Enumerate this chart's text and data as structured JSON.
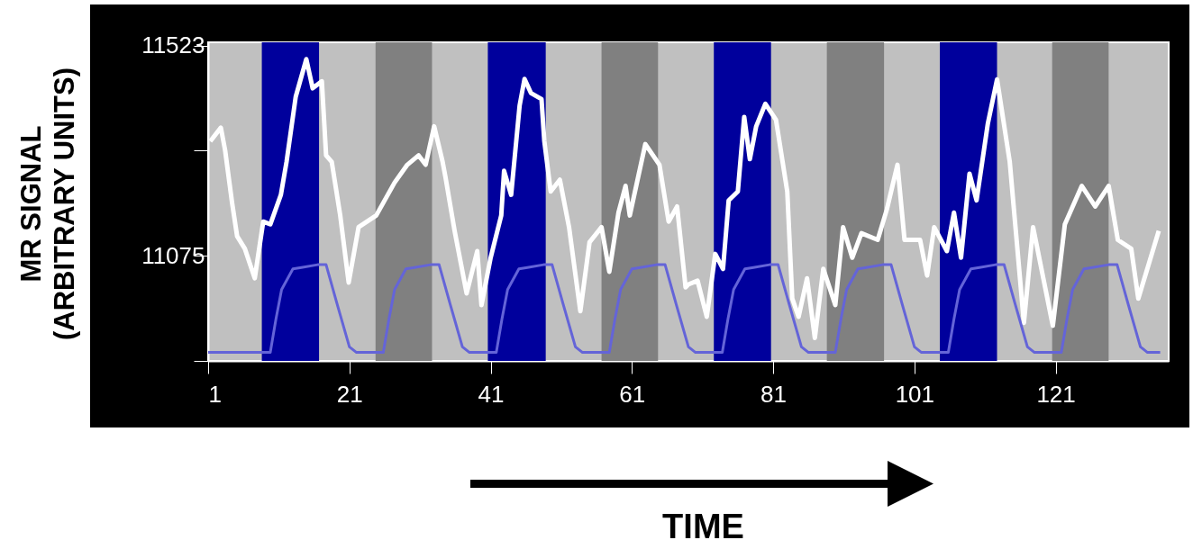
{
  "chart_data": {
    "type": "line",
    "xlabel": "TIME",
    "ylabel": "MR SIGNAL\n(ARBITRARY UNITS)",
    "xlim": [
      1,
      137
    ],
    "xticks": [
      1,
      21,
      41,
      61,
      81,
      101,
      121
    ],
    "ylim": [
      10851,
      11530
    ],
    "yticks": [
      11523,
      {
        "value": 11299,
        "label": null
      },
      11075,
      {
        "value": 10851,
        "label": null
      }
    ],
    "bands": [
      {
        "axis": "x",
        "from": 8.6,
        "to": 16.7,
        "color": "#00009c"
      },
      {
        "axis": "x",
        "from": 24.7,
        "to": 32.7,
        "color": "#808080"
      },
      {
        "axis": "x",
        "from": 40.6,
        "to": 48.8,
        "color": "#00009c"
      },
      {
        "axis": "x",
        "from": 56.7,
        "to": 64.7,
        "color": "#808080"
      },
      {
        "axis": "x",
        "from": 72.6,
        "to": 80.7,
        "color": "#00009c"
      },
      {
        "axis": "x",
        "from": 88.6,
        "to": 96.7,
        "color": "#808080"
      },
      {
        "axis": "x",
        "from": 104.6,
        "to": 112.7,
        "color": "#00009c"
      },
      {
        "axis": "x",
        "from": 120.5,
        "to": 128.5,
        "color": "#808080"
      }
    ],
    "series": [
      {
        "color": "#ffffff",
        "x": [
          1.3,
          2.8,
          3.4,
          4.4,
          5.1,
          6.2,
          7.6,
          8.8,
          9.8,
          11.3,
          12.1,
          13.4,
          14.9,
          15.8,
          17.1,
          17.7,
          18.5,
          19.7,
          20.9,
          22.3,
          24.8,
          27.4,
          29.2,
          30.8,
          31.8,
          33.0,
          34.2,
          34.6,
          35.9,
          37.6,
          39.1,
          39.7,
          41.0,
          42.5,
          42.9,
          43.9,
          45.1,
          45.8,
          46.7,
          48.2,
          48.6,
          49.5,
          50.8,
          52.1,
          53.7,
          55.0,
          56.7,
          57.8,
          59.1,
          60.1,
          60.7,
          62.9,
          64.9,
          66.2,
          67.4,
          68.6,
          69.0,
          70.3,
          71.6,
          72.8,
          73.9,
          74.7,
          76.0,
          76.9,
          77.7,
          78.6,
          79.9,
          81.4,
          83.0,
          83.7,
          84.6,
          85.8,
          86.9,
          88.1,
          89.8,
          90.9,
          92.2,
          93.5,
          95.8,
          97.1,
          98.6,
          99.6,
          101.8,
          102.8,
          103.8,
          105.6,
          106.6,
          107.6,
          108.8,
          109.8,
          111.4,
          112.7,
          114.5,
          116.5,
          117.8,
          120.6,
          122.3,
          124.7,
          126.6,
          128.5,
          129.8,
          131.7,
          132.7,
          135.6
        ],
        "values": [
          11319,
          11348,
          11300,
          11187,
          11117,
          11090,
          11027,
          11148,
          11142,
          11205,
          11275,
          11414,
          11494,
          11432,
          11447,
          11289,
          11275,
          11161,
          11018,
          11136,
          11161,
          11231,
          11269,
          11289,
          11269,
          11351,
          11275,
          11243,
          11128,
          10995,
          11085,
          10970,
          11071,
          11161,
          11256,
          11205,
          11395,
          11452,
          11422,
          11409,
          11319,
          11212,
          11237,
          11136,
          10957,
          11104,
          11136,
          11041,
          11167,
          11224,
          11161,
          11313,
          11269,
          11148,
          11180,
          11008,
          11014,
          11022,
          10945,
          11079,
          11047,
          11193,
          11212,
          11371,
          11281,
          11351,
          11399,
          11365,
          11212,
          10984,
          10945,
          11027,
          10900,
          11047,
          10970,
          11136,
          11071,
          11123,
          11109,
          11174,
          11269,
          11109,
          11109,
          11033,
          11136,
          11085,
          11167,
          11071,
          11250,
          11193,
          11357,
          11451,
          11275,
          10932,
          11136,
          10926,
          11142,
          11224,
          11180,
          11224,
          11109,
          11090,
          10984,
          11128
        ]
      },
      {
        "color": "#6464d8",
        "x": [
          1,
          9.8,
          10.6,
          11.4,
          13,
          14.2,
          16.5,
          17.7,
          19.3,
          21,
          22,
          25.8,
          26.6,
          27.4,
          29,
          30.2,
          32.5,
          33.7,
          35.3,
          37,
          38,
          41.8,
          42.6,
          43.4,
          45,
          46.2,
          48.5,
          49.7,
          51.3,
          53,
          54,
          57.8,
          58.6,
          59.4,
          61,
          62.2,
          64.5,
          65.7,
          67.3,
          69,
          70,
          73.8,
          74.6,
          75.4,
          77,
          78.2,
          80.5,
          81.7,
          83.3,
          85,
          86,
          89.8,
          90.6,
          91.4,
          93,
          94.2,
          96.5,
          97.7,
          99.3,
          101,
          102,
          105.8,
          106.6,
          107.4,
          109,
          110.2,
          112.5,
          113.7,
          115.3,
          117,
          118,
          121.8,
          122.6,
          123.4,
          125,
          126.2,
          128.5,
          129.7,
          131.3,
          133,
          134,
          135.8
        ],
        "values": [
          10869,
          10869,
          10940,
          11003,
          11047,
          11050,
          11056,
          11056,
          10970,
          10881,
          10869,
          10869,
          10940,
          11003,
          11047,
          11050,
          11056,
          11056,
          10970,
          10881,
          10869,
          10869,
          10940,
          11003,
          11047,
          11050,
          11056,
          11056,
          10970,
          10881,
          10869,
          10869,
          10940,
          11003,
          11047,
          11050,
          11056,
          11056,
          10970,
          10881,
          10869,
          10869,
          10940,
          11003,
          11047,
          11050,
          11056,
          11056,
          10970,
          10881,
          10869,
          10869,
          10940,
          11003,
          11047,
          11050,
          11056,
          11056,
          10970,
          10881,
          10869,
          10869,
          10940,
          11003,
          11047,
          11050,
          11056,
          11056,
          10970,
          10881,
          10869,
          10869,
          10940,
          11003,
          11047,
          11050,
          11056,
          11056,
          10970,
          10881,
          10869,
          10869
        ]
      }
    ]
  }
}
